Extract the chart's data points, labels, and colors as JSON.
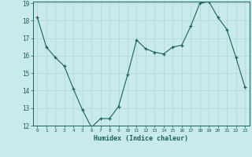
{
  "x": [
    0,
    1,
    2,
    3,
    4,
    5,
    6,
    7,
    8,
    9,
    10,
    11,
    12,
    13,
    14,
    15,
    16,
    17,
    18,
    19,
    20,
    21,
    22,
    23
  ],
  "y": [
    18.2,
    16.5,
    15.9,
    15.4,
    14.1,
    12.9,
    11.9,
    12.4,
    12.4,
    13.1,
    14.9,
    16.9,
    16.4,
    16.2,
    16.1,
    16.5,
    16.6,
    17.7,
    19.0,
    19.1,
    18.2,
    17.5,
    15.9,
    14.2
  ],
  "xlabel": "Humidex (Indice chaleur)",
  "ylim": [
    12,
    19
  ],
  "xlim": [
    -0.5,
    23.5
  ],
  "bg_color": "#c8eaea",
  "grid_color": "#b8d8d8",
  "line_color": "#1a6060",
  "marker_color": "#1a6060",
  "text_color": "#1a6060",
  "yticks": [
    12,
    13,
    14,
    15,
    16,
    17,
    18,
    19
  ],
  "xticks": [
    0,
    1,
    2,
    3,
    4,
    5,
    6,
    7,
    8,
    9,
    10,
    11,
    12,
    13,
    14,
    15,
    16,
    17,
    18,
    19,
    20,
    21,
    22,
    23
  ]
}
